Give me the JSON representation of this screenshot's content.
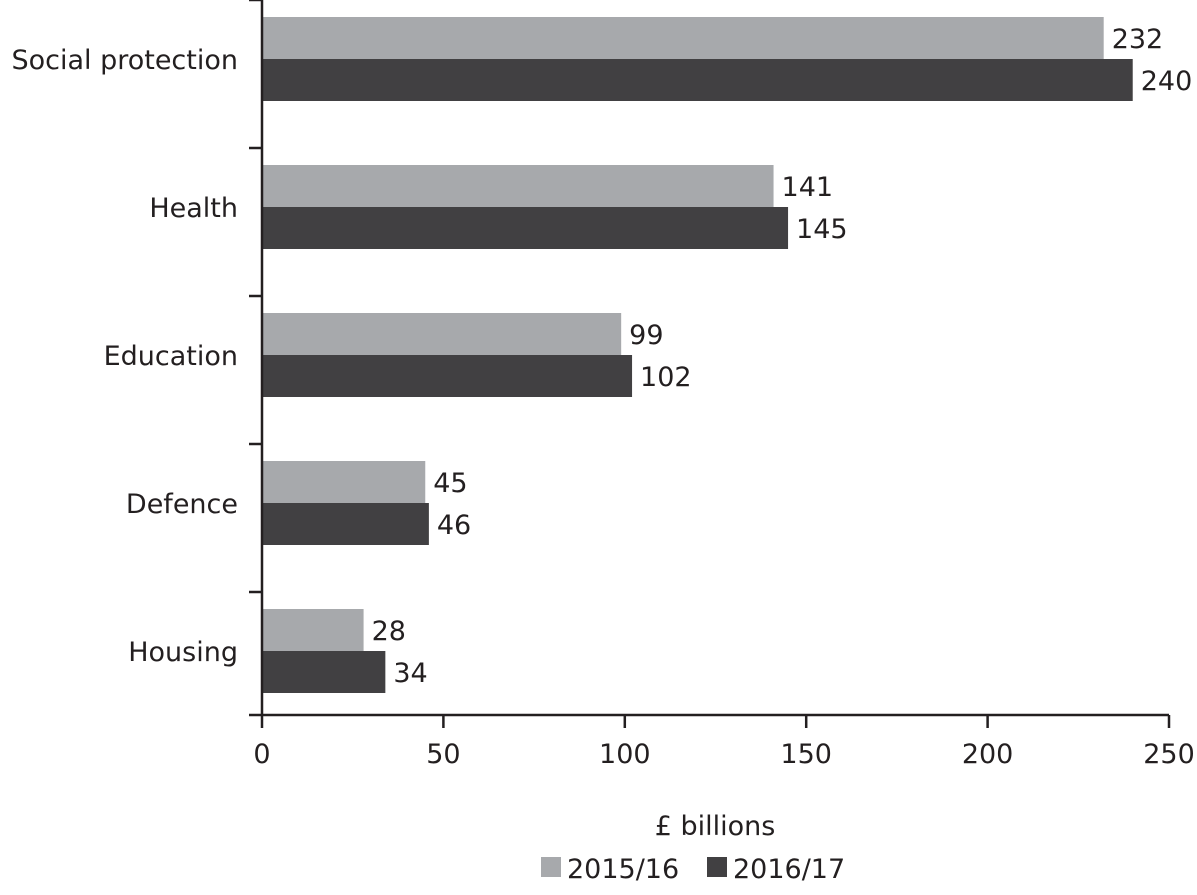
{
  "chart_data": {
    "type": "bar",
    "orientation": "horizontal",
    "title": "",
    "xlabel": "£ billions",
    "ylabel": "",
    "categories": [
      "Social protection",
      "Health",
      "Education",
      "Defence",
      "Housing"
    ],
    "series": [
      {
        "name": "2015/16",
        "values": [
          232,
          141,
          99,
          45,
          28
        ],
        "color": "#a7a9ac"
      },
      {
        "name": "2016/17",
        "values": [
          240,
          145,
          102,
          46,
          34
        ],
        "color": "#414042"
      }
    ],
    "data_labels": [
      [
        "232",
        "141",
        "99",
        "45",
        "28"
      ],
      [
        "240",
        "145",
        "102",
        "46",
        "34"
      ]
    ],
    "xlim": [
      0,
      250
    ],
    "xticks": [
      0,
      50,
      100,
      150,
      200,
      250
    ],
    "xtick_labels": [
      "0",
      "50",
      "100",
      "150",
      "200",
      "250"
    ],
    "grid": false,
    "legend_position": "bottom-center",
    "axis_color": "#231f20"
  }
}
